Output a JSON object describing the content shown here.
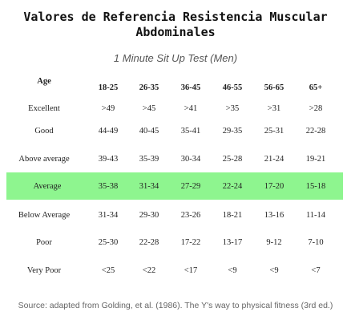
{
  "title_line1": "Valores de Referencia Resistencia Muscular",
  "title_line2": "Abdominales",
  "subtitle": "1 Minute Sit Up Test (Men)",
  "table": {
    "header": [
      "Age",
      "18-25",
      "26-35",
      "36-45",
      "46-55",
      "56-65",
      "65+"
    ],
    "rows": [
      [
        "Excellent",
        ">49",
        ">45",
        ">41",
        ">35",
        ">31",
        ">28"
      ],
      [
        "Good",
        "44-49",
        "40-45",
        "35-41",
        "29-35",
        "25-31",
        "22-28"
      ],
      [
        "Above average",
        "39-43",
        "35-39",
        "30-34",
        "25-28",
        "21-24",
        "19-21"
      ],
      [
        "Average",
        "35-38",
        "31-34",
        "27-29",
        "22-24",
        "17-20",
        "15-18"
      ],
      [
        "Below Average",
        "31-34",
        "29-30",
        "23-26",
        "18-21",
        "13-16",
        "11-14"
      ],
      [
        "Poor",
        "25-30",
        "22-28",
        "17-22",
        "13-17",
        "9-12",
        "7-10"
      ],
      [
        "Very Poor",
        "<25",
        "<22",
        "<17",
        "<9",
        "<9",
        "<7"
      ]
    ],
    "highlight_color": "#8ef58f"
  },
  "source": "Source: adapted from Golding, et al. (1986). The Y's way to physical fitness (3rd ed.)"
}
